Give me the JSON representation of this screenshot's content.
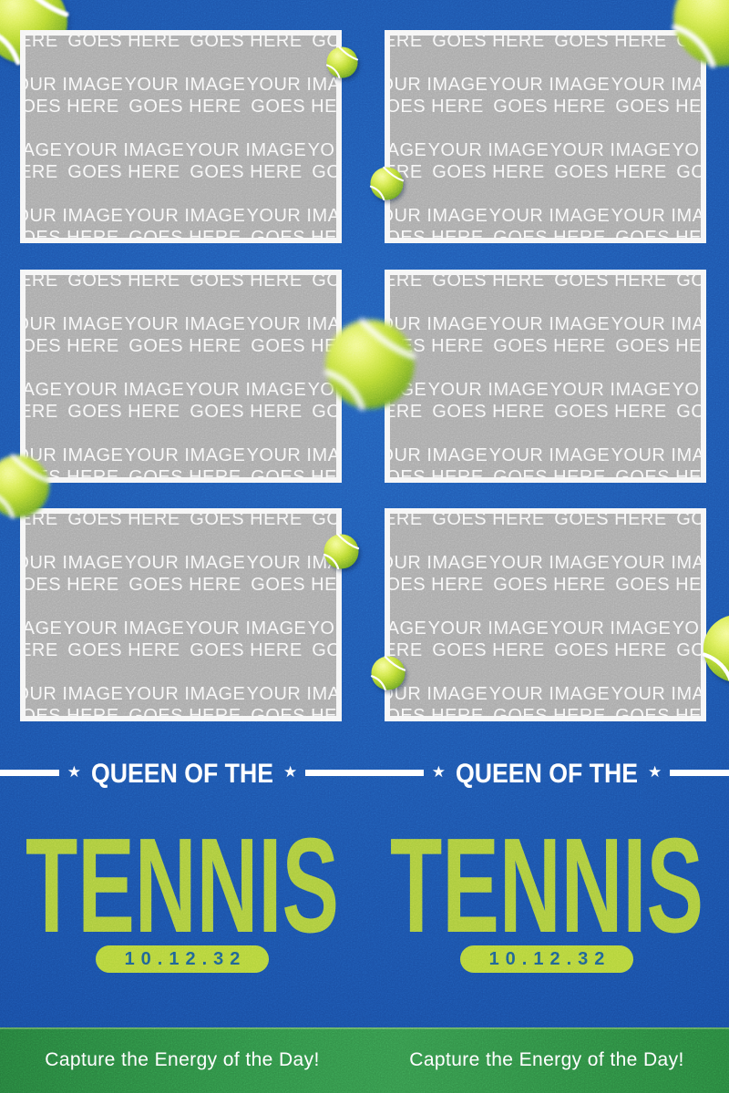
{
  "placeholder": {
    "line1": "YOUR IMAGE",
    "line2": "GOES HERE"
  },
  "strip": {
    "header_label": "QUEEN OF THE",
    "star": "★",
    "title": "TENNIS",
    "date": "10.12.32",
    "tagline": "Capture the Energy of the Day!"
  },
  "colors": {
    "background_blue": "#1a53ad",
    "title_green": "#a9c93c",
    "pill_green": "#b2d23a",
    "date_text_blue": "#1e5e8c",
    "footer_green": "#2f8c45",
    "placeholder_gray": "#a8a8a8",
    "text_white": "#ffffff"
  }
}
